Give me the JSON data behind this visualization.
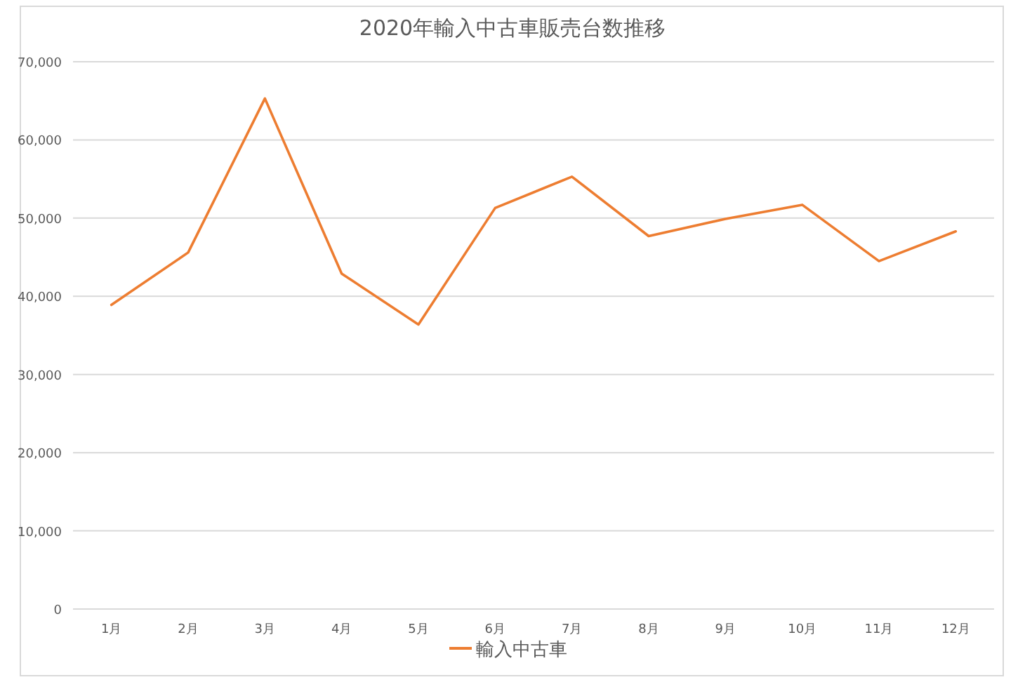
{
  "chart_data": {
    "type": "line",
    "title": "2020年輸入中古車販売台数推移",
    "categories": [
      "1月",
      "2月",
      "3月",
      "4月",
      "5月",
      "6月",
      "7月",
      "8月",
      "9月",
      "10月",
      "11月",
      "12月"
    ],
    "series": [
      {
        "name": "輸入中古車",
        "color": "#ed7d31",
        "values": [
          38900,
          45600,
          65300,
          42900,
          36400,
          51300,
          55300,
          47700,
          49900,
          51700,
          44500,
          48300
        ]
      }
    ],
    "ylim": [
      0,
      70000
    ],
    "yticks": [
      {
        "value": 0,
        "label": "0"
      },
      {
        "value": 10000,
        "label": "10,000"
      },
      {
        "value": 20000,
        "label": "20,000"
      },
      {
        "value": 30000,
        "label": "30,000"
      },
      {
        "value": 40000,
        "label": "40,000"
      },
      {
        "value": 50000,
        "label": "50,000"
      },
      {
        "value": 60000,
        "label": "60,000"
      },
      {
        "value": 70000,
        "label": "70,000"
      }
    ],
    "grid": "y",
    "legend": "bottom",
    "marker": "none",
    "line_style": "solid"
  }
}
